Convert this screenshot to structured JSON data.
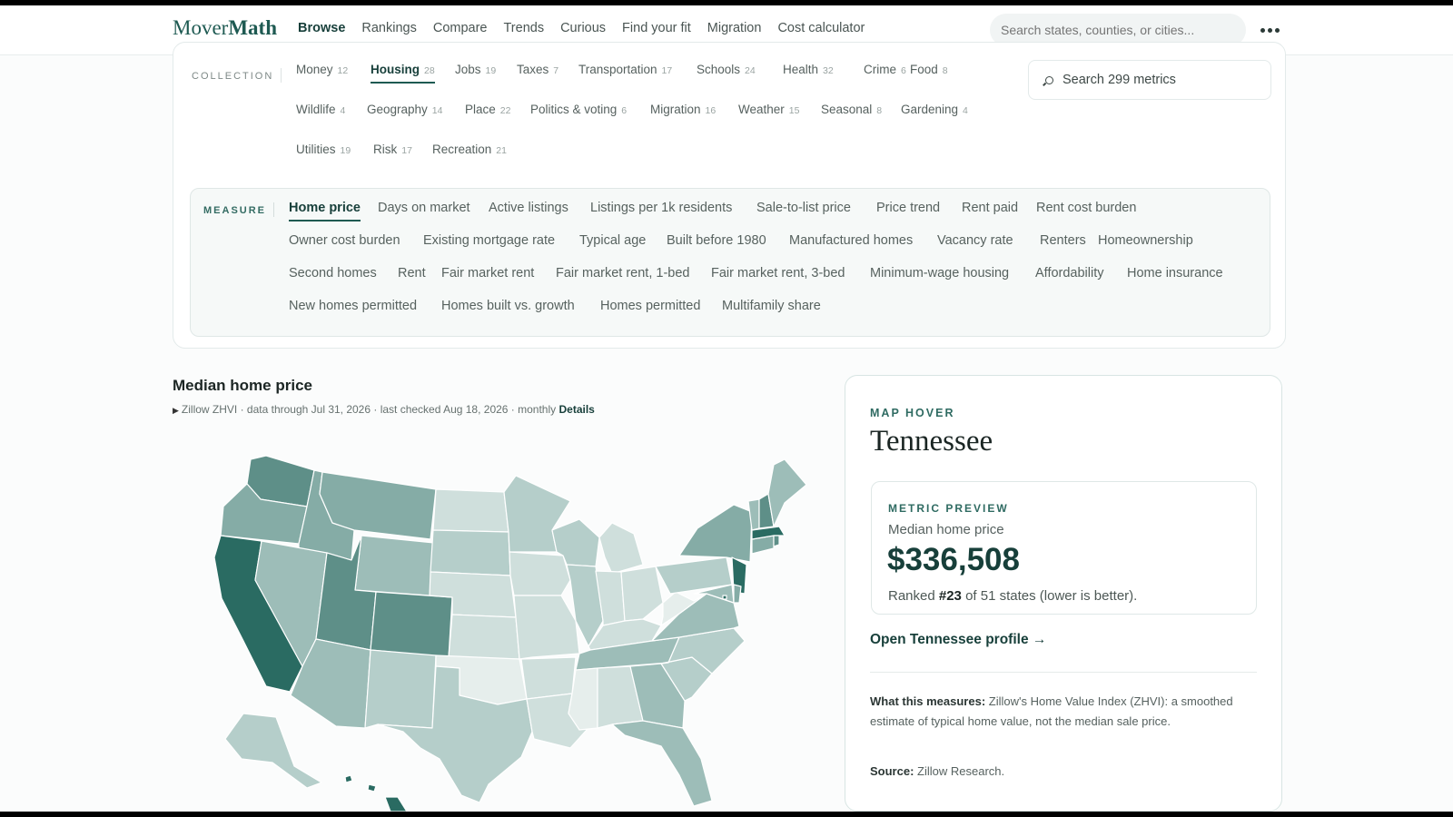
{
  "app": {
    "logo_a": "Mover",
    "logo_b": "Math",
    "nav": [
      {
        "label": "Browse",
        "active": true
      },
      {
        "label": "Rankings"
      },
      {
        "label": "Compare"
      },
      {
        "label": "Trends"
      },
      {
        "label": "Curious"
      },
      {
        "label": "Find your fit"
      },
      {
        "label": "Migration"
      },
      {
        "label": "Cost calculator"
      }
    ],
    "search_placeholder": "Search states, counties, or cities...",
    "more_icon": "more-dots-icon"
  },
  "collection": {
    "label": "COLLECTION",
    "items": [
      {
        "label": "Money",
        "count": "12"
      },
      {
        "label": "Housing",
        "count": "28",
        "active": true
      },
      {
        "label": "Jobs",
        "count": "19"
      },
      {
        "label": "Taxes",
        "count": "7"
      },
      {
        "label": "Transportation",
        "count": "17"
      },
      {
        "label": "Schools",
        "count": "24"
      },
      {
        "label": "Health",
        "count": "32"
      },
      {
        "label": "Crime",
        "count": "6"
      },
      {
        "label": "Food",
        "count": "8"
      },
      {
        "label": "Wildlife",
        "count": "4"
      },
      {
        "label": "Geography",
        "count": "14"
      },
      {
        "label": "Place",
        "count": "22"
      },
      {
        "label": "Politics & voting",
        "count": "6"
      },
      {
        "label": "Migration",
        "count": "16"
      },
      {
        "label": "Weather",
        "count": "15"
      },
      {
        "label": "Seasonal",
        "count": "8"
      },
      {
        "label": "Gardening",
        "count": "4"
      },
      {
        "label": "Utilities",
        "count": "19"
      },
      {
        "label": "Risk",
        "count": "17"
      },
      {
        "label": "Recreation",
        "count": "21"
      }
    ],
    "metric_search": "Search 299 metrics"
  },
  "measure": {
    "label": "MEASURE",
    "items": [
      {
        "label": "Home price",
        "active": true
      },
      {
        "label": "Days on market"
      },
      {
        "label": "Active listings"
      },
      {
        "label": "Listings per 1k residents"
      },
      {
        "label": "Sale-to-list price"
      },
      {
        "label": "Price trend"
      },
      {
        "label": "Rent paid"
      },
      {
        "label": "Rent cost burden"
      },
      {
        "label": "Owner cost burden"
      },
      {
        "label": "Existing mortgage rate"
      },
      {
        "label": "Typical age"
      },
      {
        "label": "Built before 1980"
      },
      {
        "label": "Manufactured homes"
      },
      {
        "label": "Vacancy rate"
      },
      {
        "label": "Renters"
      },
      {
        "label": "Homeownership"
      },
      {
        "label": "Second homes"
      },
      {
        "label": "Rent"
      },
      {
        "label": "Fair market rent"
      },
      {
        "label": "Fair market rent, 1-bed"
      },
      {
        "label": "Fair market rent, 3-bed"
      },
      {
        "label": "Minimum-wage housing"
      },
      {
        "label": "Affordability"
      },
      {
        "label": "Home insurance"
      },
      {
        "label": "New homes permitted"
      },
      {
        "label": "Homes built vs. growth"
      },
      {
        "label": "Homes permitted"
      },
      {
        "label": "Multifamily share"
      }
    ]
  },
  "chart": {
    "title": "Median home price",
    "meta": "Zillow ZHVI · data through Jul 31, 2026 · last checked Aug 18, 2026 · monthly",
    "details": "Details"
  },
  "hover": {
    "eyebrow": "MAP HOVER",
    "state": "Tennessee",
    "preview_label": "METRIC PREVIEW",
    "metric": "Median home price",
    "value": "$336,508",
    "rank_prefix": "Ranked",
    "rank": "#23",
    "rank_suffix": "of 51 states (lower is better).",
    "link": "Open Tennessee profile →",
    "desc_label": "What this measures:",
    "desc": "Zillow's Home Value Index (ZHVI): a smoothed estimate of typical home value, not the median sale price.",
    "source_label": "Source:",
    "source": "Zillow Research."
  },
  "map_colors": {
    "c0": "#e6eeec",
    "c1": "#cfdfdc",
    "c2": "#b5ceca",
    "c3": "#9dbdb8",
    "c4": "#85aca6",
    "c5": "#5e8f88",
    "c6": "#2a6b62",
    "border": "#ffffff"
  }
}
